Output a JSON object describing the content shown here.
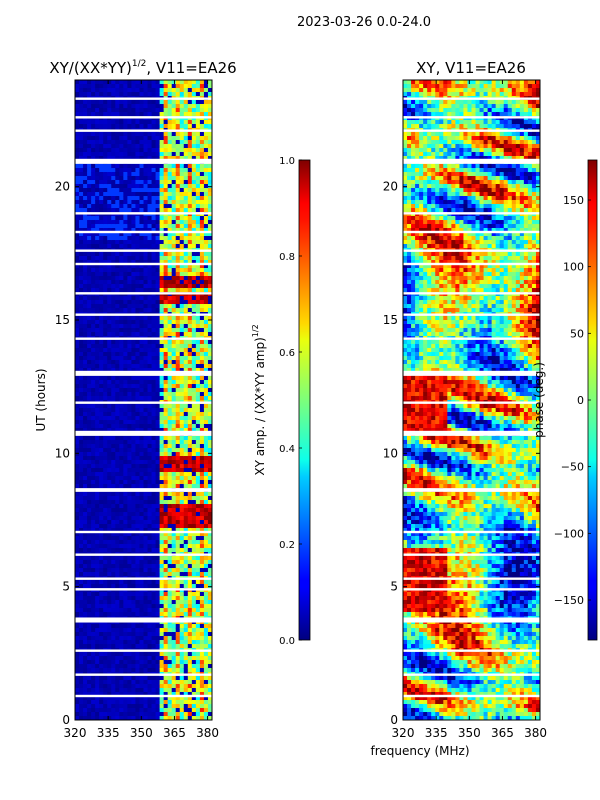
{
  "figure": {
    "suptitle": "2023-03-26 0.0-24.0",
    "xlabel": "frequency (MHz)",
    "ylabel": "UT (hours)"
  },
  "chart_data": [
    {
      "type": "heatmap",
      "title_main": "XY/(XX*YY)",
      "title_sup": "1/2",
      "title_tail": ", V11=EA26",
      "xlabel": "frequency (MHz)",
      "ylabel": "UT (hours)",
      "xlim": [
        320,
        382
      ],
      "ylim": [
        0,
        24
      ],
      "xticks": [
        320,
        335,
        350,
        365,
        380
      ],
      "yticks": [
        0,
        5,
        10,
        15,
        20
      ],
      "colorbar": {
        "label_main": "XY amp. / (XX*YY amp)",
        "label_sup": "1/2",
        "range": [
          0.0,
          1.0
        ],
        "ticks": [
          "0.0",
          "0.2",
          "0.4",
          "0.6",
          "0.8",
          "1.0"
        ],
        "tick_values": [
          0.0,
          0.2,
          0.4,
          0.6,
          0.8,
          1.0
        ],
        "colormap": "jet"
      },
      "flagged_hours": [
        0.9,
        1.7,
        2.6,
        3.7,
        3.75,
        3.8,
        4.9,
        5.3,
        6.2,
        7.05,
        8.6,
        8.65,
        10.7,
        10.75,
        10.8,
        11.9,
        12.95,
        13.0,
        13.05,
        14.3,
        15.2,
        16.0,
        17.1,
        17.6,
        18.3,
        19.0,
        20.9,
        20.95,
        21.0,
        22.1,
        22.6,
        23.3
      ],
      "bright_channel_band_mhz": [
        359,
        382
      ],
      "high_amplitude_hours": [
        7.4,
        7.6,
        7.8,
        9.6,
        15.8,
        16.4
      ]
    },
    {
      "type": "heatmap",
      "title_main": "XY, V11=EA26",
      "xlabel": "frequency (MHz)",
      "ylabel": "",
      "xlim": [
        320,
        382
      ],
      "ylim": [
        0,
        24
      ],
      "xticks": [
        320,
        335,
        350,
        365,
        380
      ],
      "yticks": [
        0,
        5,
        10,
        15,
        20
      ],
      "colorbar": {
        "label": "phase (deg.)",
        "range": [
          -180,
          180
        ],
        "ticks": [
          "−150",
          "−100",
          "−50",
          "0",
          "50",
          "100",
          "150"
        ],
        "tick_values": [
          -150,
          -100,
          -50,
          0,
          50,
          100,
          150
        ],
        "colormap": "jet"
      },
      "flagged_hours": [
        0.9,
        1.7,
        2.6,
        3.7,
        3.75,
        3.8,
        4.9,
        5.3,
        6.2,
        7.05,
        8.6,
        8.65,
        10.7,
        10.75,
        10.8,
        11.9,
        12.95,
        13.0,
        13.05,
        14.3,
        15.2,
        16.0,
        17.1,
        17.6,
        18.3,
        19.0,
        20.9,
        20.95,
        21.0,
        22.1,
        22.6,
        23.3
      ]
    }
  ]
}
